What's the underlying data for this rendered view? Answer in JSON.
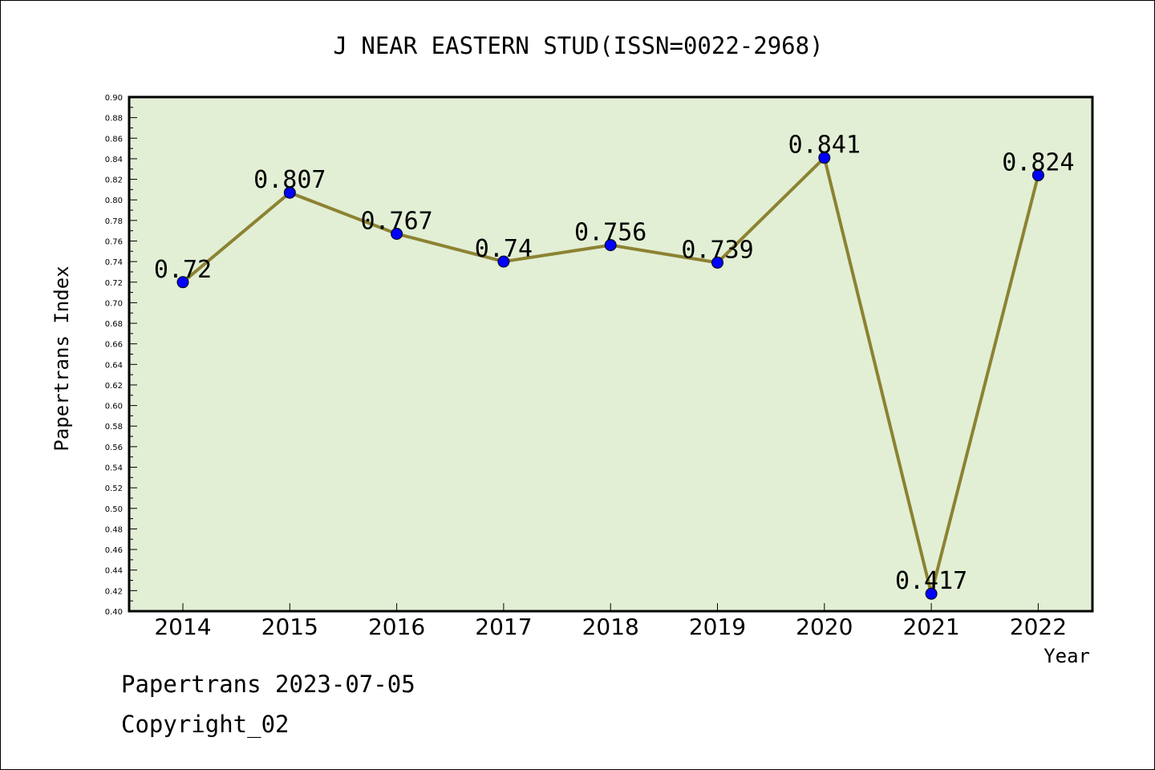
{
  "footer": {
    "line1": "Papertrans 2023-07-05",
    "line2": "Copyright_02"
  },
  "chart_data": {
    "type": "line",
    "title": "J NEAR EASTERN STUD(ISSN=0022-2968)",
    "xlabel": "Year",
    "ylabel": "Papertrans Index",
    "categories": [
      "2014",
      "2015",
      "2016",
      "2017",
      "2018",
      "2019",
      "2020",
      "2021",
      "2022"
    ],
    "series": [
      {
        "values": [
          0.72,
          0.807,
          0.767,
          0.74,
          0.756,
          0.739,
          0.841,
          0.417,
          0.824
        ]
      }
    ],
    "data_labels": [
      "0.72",
      "0.807",
      "0.767",
      "0.74",
      "0.756",
      "0.739",
      "0.841",
      "0.417",
      "0.824"
    ],
    "ylim": [
      0.4,
      0.9
    ],
    "ytick_step": 0.02,
    "colors": {
      "plot_background": "#e2efd5",
      "line": "#8c8232",
      "marker": "#0000ff"
    }
  }
}
